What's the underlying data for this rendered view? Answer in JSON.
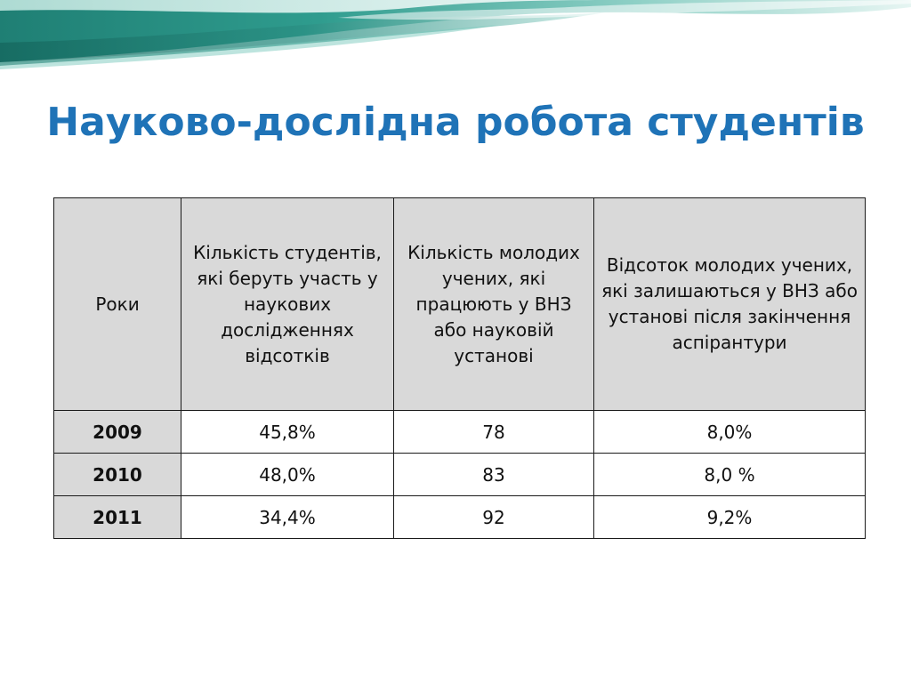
{
  "slide": {
    "title": "Науково-дослідна робота студентів"
  },
  "table": {
    "headers": [
      "Роки",
      "Кількість студентів, які беруть участь у наукових дослідженнях відсотків",
      "Кількість молодих учених, які працюють у ВНЗ або науковій установі",
      "Відсоток молодих учених, які залишаються у ВНЗ або установі після закінчення аспірантури"
    ],
    "rows": [
      [
        "2009",
        "45,8%",
        "78",
        "8,0%"
      ],
      [
        "2010",
        "48,0%",
        "83",
        "8,0 %"
      ],
      [
        "2011",
        "34,4%",
        "92",
        "9,2%"
      ]
    ]
  },
  "colors": {
    "title": "#1f73b7",
    "header_bg": "#d9d9d9",
    "banner_teal": "#2e9a8c",
    "banner_light": "#dff1ee"
  }
}
